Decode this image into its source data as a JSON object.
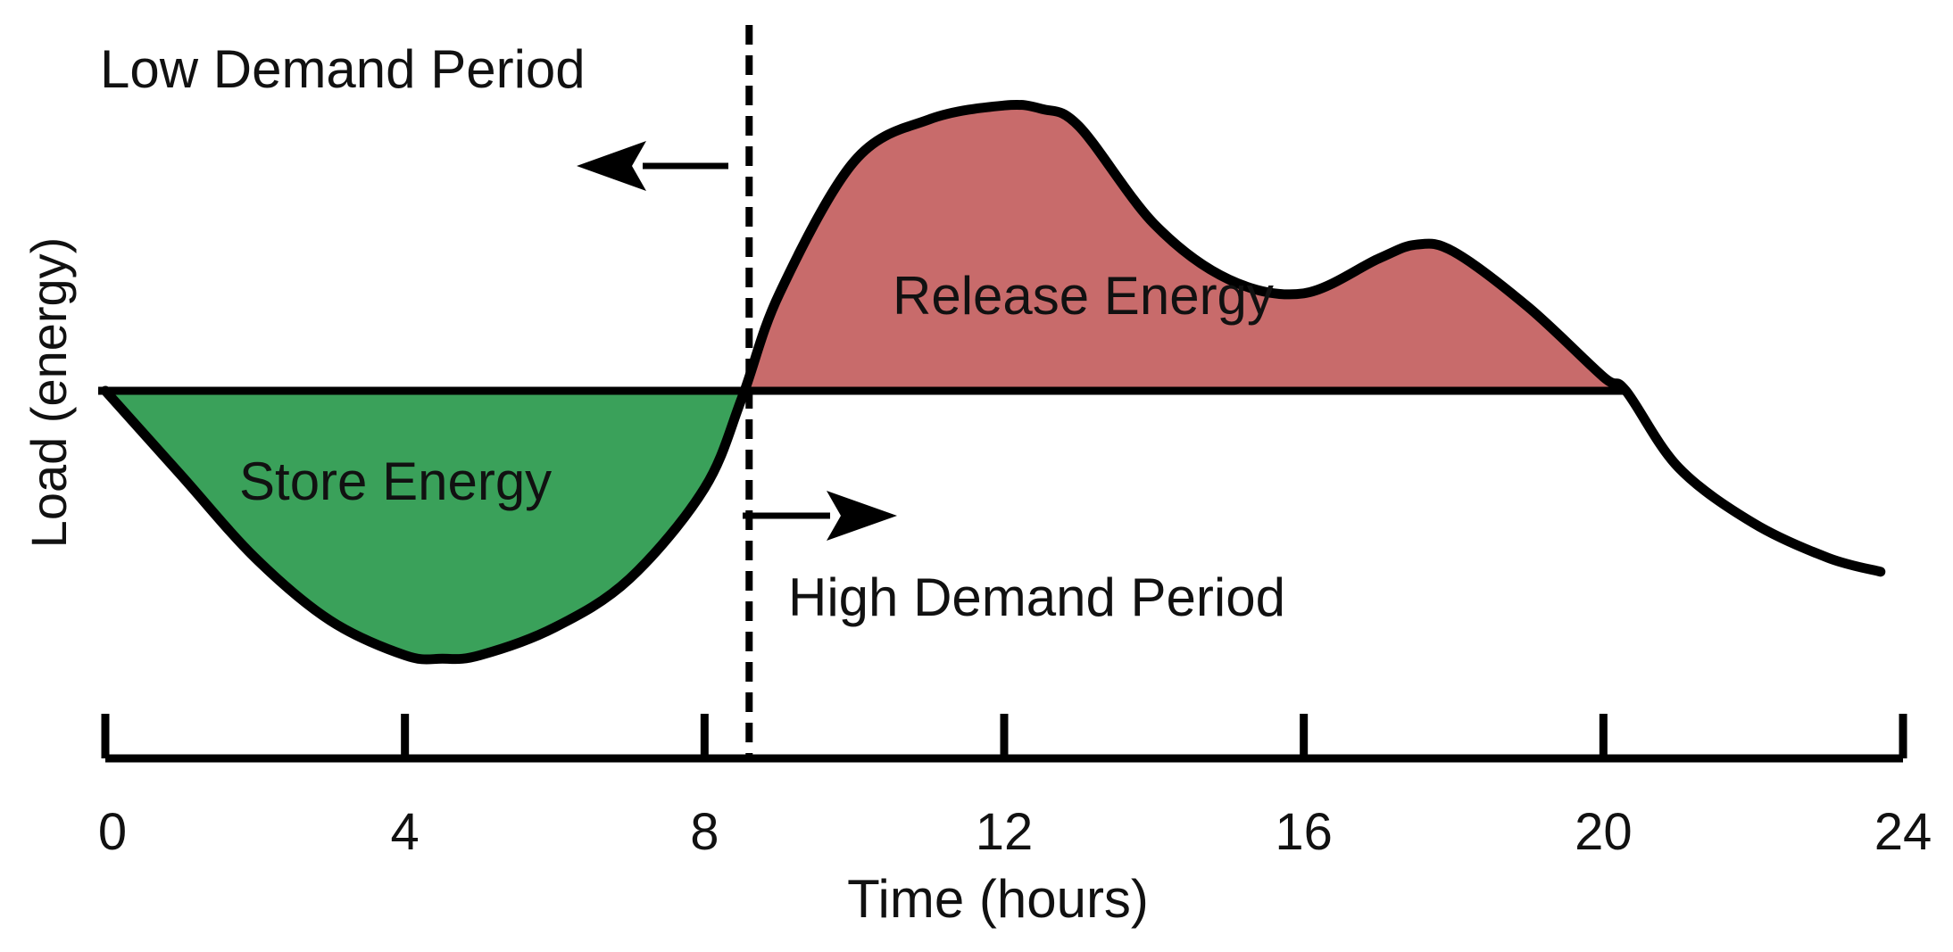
{
  "chart_data": {
    "type": "area",
    "title": "",
    "xlabel": "Time (hours)",
    "ylabel": "Load (energy)",
    "x_ticks": [
      "0",
      "4",
      "8",
      "12",
      "16",
      "20",
      "24"
    ],
    "xlim": [
      0,
      24
    ],
    "ylim": [
      0,
      10
    ],
    "baseline": 6.4,
    "divider_hour": 8.5,
    "series": [
      {
        "name": "Load",
        "x": [
          0,
          1,
          2,
          3,
          4,
          4.5,
          5,
          6,
          7,
          8,
          8.5,
          9,
          10,
          11,
          12,
          12.5,
          13,
          14,
          15,
          16,
          17,
          17.5,
          18,
          19,
          20,
          20.3,
          21,
          22,
          23,
          23.7
        ],
        "values": [
          6.4,
          5.2,
          4.0,
          3.1,
          2.6,
          2.55,
          2.6,
          3.0,
          3.7,
          5.0,
          6.3,
          7.8,
          9.7,
          10.3,
          10.5,
          10.45,
          10.2,
          8.8,
          8.0,
          7.8,
          8.3,
          8.5,
          8.4,
          7.6,
          6.6,
          6.4,
          5.3,
          4.5,
          4.0,
          3.8
        ]
      }
    ],
    "regions": {
      "store": {
        "label": "Store Energy",
        "from_hour": 0,
        "to_hour": 8.5,
        "color": "#3aa15a"
      },
      "release": {
        "label": "Release Energy",
        "from_hour": 8.5,
        "to_hour": 20.3,
        "color": "#c86b6b"
      }
    },
    "annotations": {
      "low_demand": "Low Demand Period",
      "high_demand": "High Demand Period"
    }
  },
  "colors": {
    "line": "#000000",
    "store_fill": "#3aa15a",
    "release_fill": "#c86b6b"
  }
}
